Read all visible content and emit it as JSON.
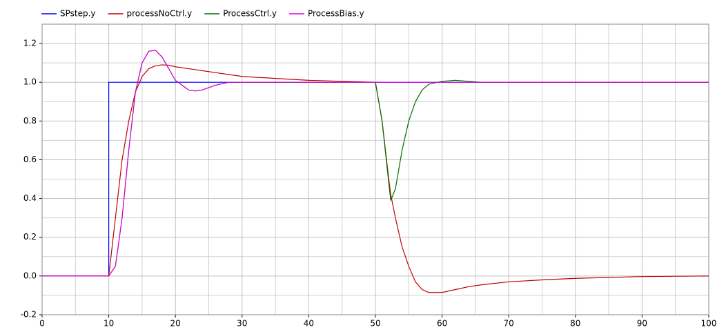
{
  "chart_data": {
    "type": "line",
    "x": [
      0,
      10,
      10,
      11,
      12,
      13,
      14,
      15,
      16,
      17,
      18,
      19,
      20,
      22,
      23,
      24,
      26,
      28,
      30,
      35,
      40,
      45,
      50,
      51,
      52,
      52.3,
      53,
      54,
      55,
      56,
      57,
      58,
      60,
      62,
      64,
      66,
      70,
      75,
      80,
      90,
      100
    ],
    "series": [
      {
        "name": "SPstep.y",
        "color": "#0000ff",
        "values": [
          0,
          0,
          1,
          1,
          1,
          1,
          1,
          1,
          1,
          1,
          1,
          1,
          1,
          1,
          1,
          1,
          1,
          1,
          1,
          1,
          1,
          1,
          1,
          1,
          1,
          1,
          1,
          1,
          1,
          1,
          1,
          1,
          1,
          1,
          1,
          1,
          1,
          1,
          1,
          1,
          1
        ]
      },
      {
        "name": "processNoCtrl.y",
        "color": "#c00000",
        "values": [
          0,
          0,
          0,
          0.3,
          0.6,
          0.8,
          0.95,
          1.03,
          1.07,
          1.085,
          1.09,
          1.088,
          1.08,
          1.07,
          1.065,
          1.06,
          1.05,
          1.04,
          1.03,
          1.02,
          1.01,
          1.005,
          1.0,
          0.8,
          0.5,
          0.42,
          0.3,
          0.15,
          0.05,
          -0.03,
          -0.07,
          -0.085,
          -0.085,
          -0.07,
          -0.055,
          -0.045,
          -0.03,
          -0.02,
          -0.012,
          -0.003,
          0
        ]
      },
      {
        "name": "ProcessCtrl.y",
        "color": "#007000",
        "values": [
          0,
          0,
          0,
          0.05,
          0.3,
          0.65,
          0.95,
          1.1,
          1.16,
          1.165,
          1.13,
          1.07,
          1.01,
          0.96,
          0.955,
          0.96,
          0.985,
          1,
          1,
          1,
          1,
          1,
          1,
          0.8,
          0.48,
          0.39,
          0.45,
          0.65,
          0.8,
          0.9,
          0.96,
          0.99,
          1.005,
          1.01,
          1.005,
          1,
          1,
          1,
          1,
          1,
          1
        ]
      },
      {
        "name": "ProcessBias.y",
        "color": "#e000e0",
        "values": [
          0,
          0,
          0,
          0.05,
          0.3,
          0.65,
          0.95,
          1.1,
          1.16,
          1.165,
          1.13,
          1.07,
          1.01,
          0.96,
          0.955,
          0.96,
          0.985,
          1,
          1,
          1,
          1,
          1,
          1,
          1,
          1,
          1,
          1,
          1,
          1,
          1,
          1,
          1,
          1,
          1,
          1,
          1,
          1,
          1,
          1,
          1,
          1
        ]
      }
    ],
    "xlim": [
      0,
      100
    ],
    "xticks": [
      0,
      10,
      20,
      30,
      40,
      50,
      60,
      70,
      80,
      90,
      100
    ],
    "ylim": [
      -0.2,
      1.3
    ],
    "yticks": [
      -0.2,
      {
        "value": 0,
        "label": "0.0"
      },
      0.2,
      0.4,
      0.6,
      0.8,
      {
        "value": 1,
        "label": "1.0"
      },
      1.2
    ],
    "grid": true,
    "legend": "top"
  }
}
